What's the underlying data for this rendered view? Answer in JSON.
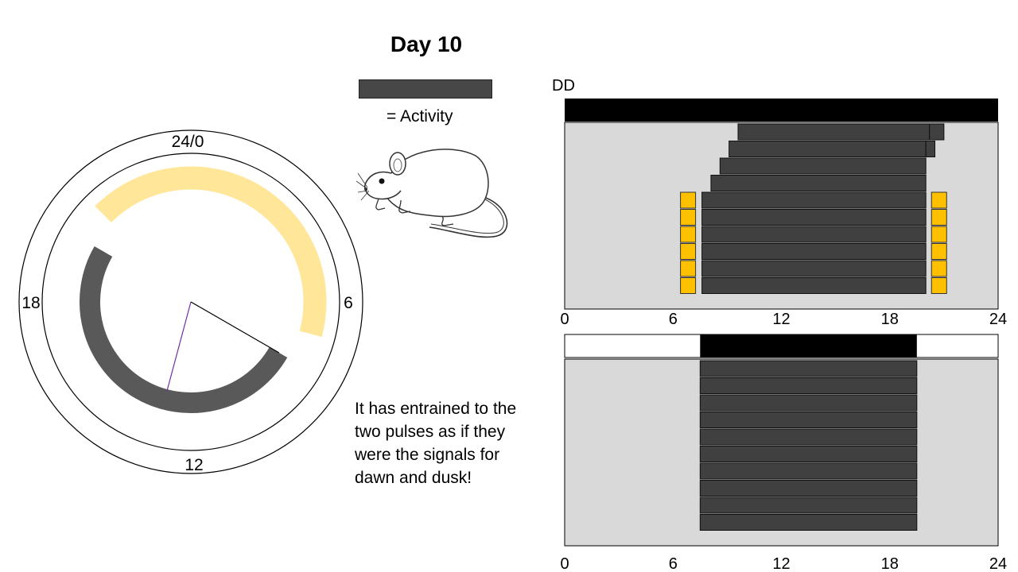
{
  "title": "Day 10",
  "legend": {
    "label": "= Activity"
  },
  "caption": {
    "lines": [
      "It has entrained to the",
      "two pulses as if they",
      "were the signals for",
      "dawn and dusk!"
    ]
  },
  "clock": {
    "labels": {
      "top": "24/0",
      "right": "6",
      "bottom": "12",
      "left": "18"
    },
    "light_arc_hours": [
      21,
      7
    ],
    "activity_arc_hours": [
      8,
      20
    ],
    "hands_hours": [
      8,
      13
    ],
    "colors": {
      "light": "#FFE699",
      "activity": "#595959",
      "hand_purple": "#7030A0"
    }
  },
  "actograms": {
    "top": {
      "condition_label": "DD",
      "x_ticks": [
        "0",
        "6",
        "12",
        "18",
        "24"
      ],
      "rows": [
        {
          "start": 9.6,
          "end": 20.2,
          "pulses": false
        },
        {
          "start": 9.1,
          "end": 20.0,
          "pulses": false
        },
        {
          "start": 8.6,
          "end": 20.0,
          "pulses": false
        },
        {
          "start": 8.1,
          "end": 20.0,
          "pulses": false
        },
        {
          "start": 7.6,
          "end": 20.0,
          "pulses": true
        },
        {
          "start": 7.6,
          "end": 20.0,
          "pulses": true
        },
        {
          "start": 7.6,
          "end": 20.0,
          "pulses": true
        },
        {
          "start": 7.6,
          "end": 20.0,
          "pulses": true
        },
        {
          "start": 7.6,
          "end": 20.0,
          "pulses": true
        },
        {
          "start": 7.6,
          "end": 20.0,
          "pulses": true
        }
      ],
      "overshoot": [
        21.0,
        20.5,
        20.0,
        19.5
      ],
      "pulse_hours": [
        6.5,
        20.4
      ],
      "colors": {
        "pulse": "#FFC000",
        "bar": "#404040",
        "bg": "#D9D9D9"
      }
    },
    "bottom": {
      "x_ticks": [
        "0",
        "6",
        "12",
        "18",
        "24"
      ],
      "dark_phase": [
        7.5,
        19.5
      ],
      "rows": [
        {
          "start": 7.5,
          "end": 19.5
        },
        {
          "start": 7.5,
          "end": 19.5
        },
        {
          "start": 7.5,
          "end": 19.5
        },
        {
          "start": 7.5,
          "end": 19.5
        },
        {
          "start": 7.5,
          "end": 19.5
        },
        {
          "start": 7.5,
          "end": 19.5
        },
        {
          "start": 7.5,
          "end": 19.5
        },
        {
          "start": 7.5,
          "end": 19.5
        },
        {
          "start": 7.5,
          "end": 19.5
        },
        {
          "start": 7.5,
          "end": 19.5
        }
      ]
    }
  }
}
